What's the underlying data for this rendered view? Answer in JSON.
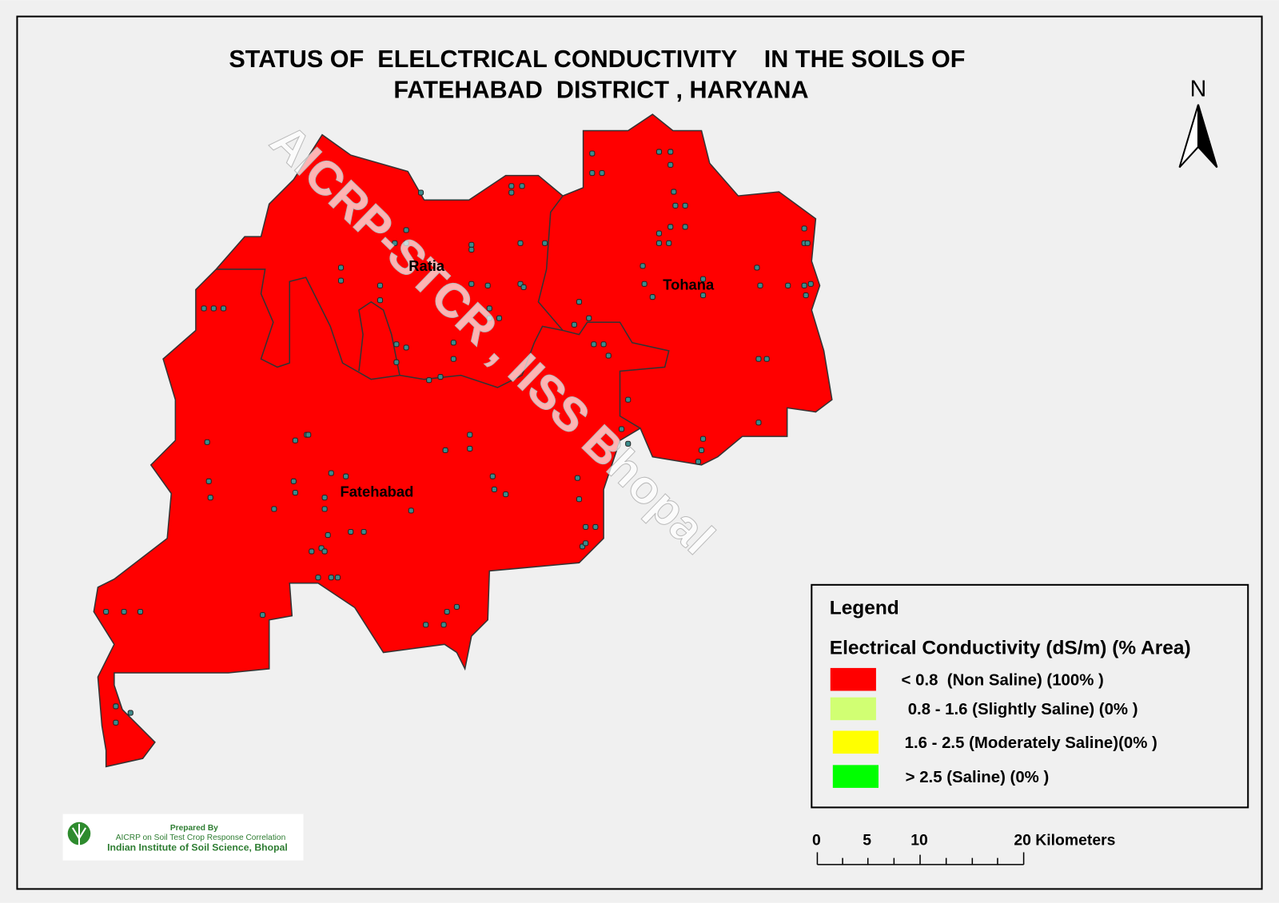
{
  "title": [
    "STATUS OF  ELELCTRICAL CONDUCTIVITY    IN THE SOILS OF",
    "FATEHABAD  DISTRICT , HARYANA"
  ],
  "north": "N",
  "regions": [
    {
      "label": "Ratia"
    },
    {
      "label": "Tohana"
    },
    {
      "label": "Fatehabad"
    }
  ],
  "watermark": "AICRP-STCR , IISS Bhopal",
  "legend": {
    "title": "Legend",
    "subtitle": "Electrical Conductivity (dS/m) (% Area)",
    "entries": [
      {
        "label": "< 0.8  (Non Saline) (100% )",
        "color": "#ff0000"
      },
      {
        "label": "0.8 - 1.6 (Slightly Saline) (0% )",
        "color": "#d1ff73"
      },
      {
        "label": "1.6 - 2.5 (Moderately Saline)(0% )",
        "color": "#ffff00"
      },
      {
        "label": "> 2.5 (Saline) (0% )",
        "color": "#00ff00"
      }
    ]
  },
  "scale_bar": {
    "labels": [
      "0",
      "5",
      "10",
      "20 Kilometers"
    ]
  },
  "credit": {
    "lines": [
      "Prepared By",
      "AICRP on Soil Test Crop Response Correlation",
      "Indian Institute of Soil Science, Bhopal"
    ]
  }
}
